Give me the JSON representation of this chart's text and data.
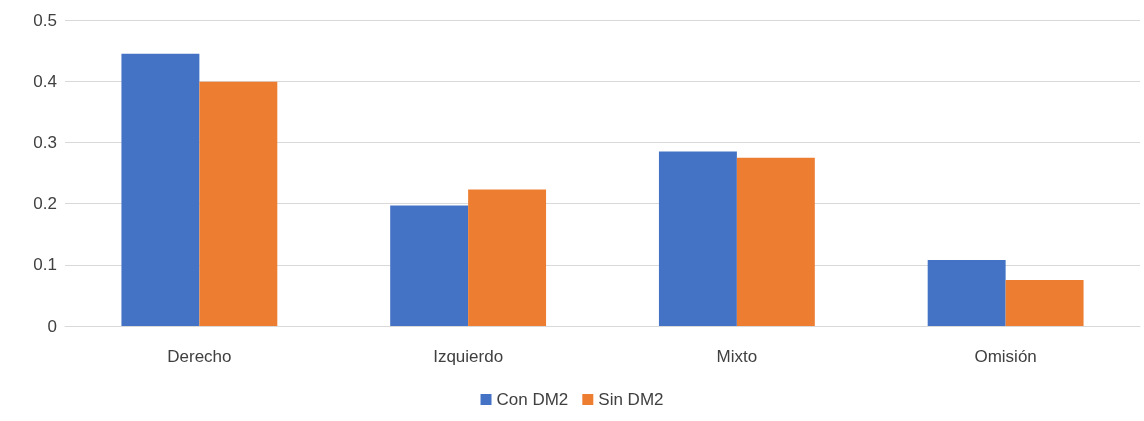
{
  "chart_data": {
    "type": "bar",
    "categories": [
      "Derecho",
      "Izquierdo",
      "Mixto",
      "Omisión"
    ],
    "series": [
      {
        "name": "Con DM2",
        "color": "#4472c4",
        "values": [
          0.445,
          0.197,
          0.285,
          0.108
        ]
      },
      {
        "name": "Sin DM2",
        "color": "#ed7d31",
        "values": [
          0.399,
          0.223,
          0.275,
          0.075
        ]
      }
    ],
    "ylim": [
      0,
      0.5
    ],
    "yticks": [
      0,
      0.1,
      0.2,
      0.3,
      0.4,
      0.5
    ],
    "grid": "y",
    "legend": "bottom"
  }
}
